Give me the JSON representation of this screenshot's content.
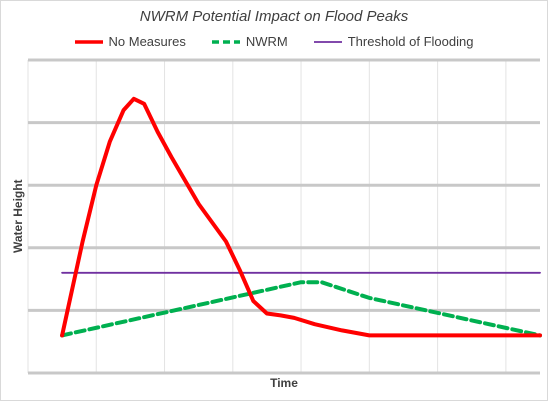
{
  "chart_data": {
    "type": "line",
    "title": "NWRM Potential Impact on Flood Peaks",
    "xlabel": "Time",
    "ylabel": "Water Height",
    "xlim": [
      0,
      7.5
    ],
    "ylim": [
      0,
      5
    ],
    "grid": "horizontal and vertical, no tick labels",
    "legend_position": "top",
    "series": [
      {
        "name": "No Measures",
        "color": "#ff0000",
        "style": "solid",
        "points": [
          [
            0.5,
            0.6
          ],
          [
            0.8,
            2.1
          ],
          [
            1,
            3
          ],
          [
            1.2,
            3.7
          ],
          [
            1.4,
            4.2
          ],
          [
            1.55,
            4.38
          ],
          [
            1.7,
            4.3
          ],
          [
            1.9,
            3.85
          ],
          [
            2.1,
            3.45
          ],
          [
            2.5,
            2.7
          ],
          [
            2.9,
            2.1
          ],
          [
            3.1,
            1.65
          ],
          [
            3.3,
            1.15
          ],
          [
            3.5,
            0.95
          ],
          [
            3.7,
            0.92
          ],
          [
            3.9,
            0.88
          ],
          [
            4.2,
            0.78
          ],
          [
            4.6,
            0.68
          ],
          [
            5,
            0.6
          ],
          [
            5.3,
            0.6
          ],
          [
            6,
            0.6
          ],
          [
            7,
            0.6
          ],
          [
            7.5,
            0.6
          ]
        ]
      },
      {
        "name": "NWRM",
        "color": "#00b050",
        "style": "dashed",
        "points": [
          [
            0.5,
            0.6
          ],
          [
            4,
            1.45
          ],
          [
            4.3,
            1.45
          ],
          [
            5,
            1.2
          ],
          [
            7.5,
            0.6
          ]
        ]
      },
      {
        "name": "Threshold of Flooding",
        "color": "#7030a0",
        "style": "solid-thin",
        "points": [
          [
            0.5,
            1.6
          ],
          [
            7.5,
            1.6
          ]
        ]
      }
    ]
  }
}
